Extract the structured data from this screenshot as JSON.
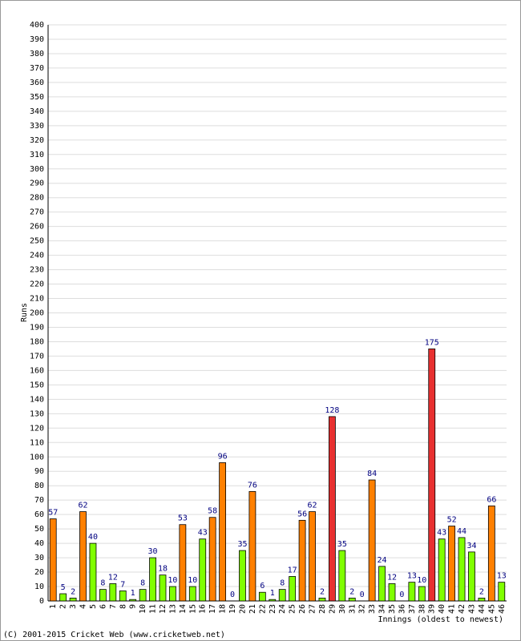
{
  "chart_data": {
    "type": "bar",
    "y_label": "Runs",
    "x_label": "Innings (oldest to newest)",
    "footer": "(C) 2001-2015 Cricket Web (www.cricketweb.net)",
    "categories": [
      "1",
      "2",
      "3",
      "4",
      "5",
      "6",
      "7",
      "8",
      "9",
      "10",
      "11",
      "12",
      "13",
      "14",
      "15",
      "16",
      "17",
      "18",
      "19",
      "20",
      "21",
      "22",
      "23",
      "24",
      "25",
      "26",
      "27",
      "28",
      "29",
      "30",
      "31",
      "32",
      "33",
      "34",
      "35",
      "36",
      "37",
      "38",
      "39",
      "40",
      "41",
      "42",
      "43",
      "44",
      "45",
      "46"
    ],
    "values": [
      57,
      5,
      2,
      62,
      40,
      8,
      12,
      7,
      1,
      8,
      30,
      18,
      10,
      53,
      10,
      43,
      58,
      96,
      0,
      35,
      76,
      6,
      1,
      8,
      17,
      56,
      62,
      2,
      128,
      35,
      2,
      0,
      84,
      24,
      12,
      0,
      13,
      10,
      175,
      43,
      52,
      44,
      34,
      2,
      66,
      13
    ],
    "colors": [
      "#ff8000",
      "#80ff00",
      "#80ff00",
      "#ff8000",
      "#80ff00",
      "#80ff00",
      "#80ff00",
      "#80ff00",
      "#80ff00",
      "#80ff00",
      "#80ff00",
      "#80ff00",
      "#80ff00",
      "#ff8000",
      "#80ff00",
      "#80ff00",
      "#ff8000",
      "#ff8000",
      "#80ff00",
      "#80ff00",
      "#ff8000",
      "#80ff00",
      "#80ff00",
      "#80ff00",
      "#80ff00",
      "#ff8000",
      "#ff8000",
      "#80ff00",
      "#e83030",
      "#80ff00",
      "#80ff00",
      "#80ff00",
      "#ff8000",
      "#80ff00",
      "#80ff00",
      "#80ff00",
      "#80ff00",
      "#80ff00",
      "#e83030",
      "#80ff00",
      "#ff8000",
      "#80ff00",
      "#80ff00",
      "#80ff00",
      "#ff8000",
      "#80ff00"
    ],
    "ylim": [
      0,
      400
    ],
    "yticks": [
      0,
      10,
      20,
      30,
      40,
      50,
      60,
      70,
      80,
      90,
      100,
      110,
      120,
      130,
      140,
      150,
      160,
      170,
      180,
      190,
      200,
      210,
      220,
      230,
      240,
      250,
      260,
      270,
      280,
      290,
      300,
      310,
      320,
      330,
      340,
      350,
      360,
      370,
      380,
      390,
      400
    ],
    "grid": true
  }
}
